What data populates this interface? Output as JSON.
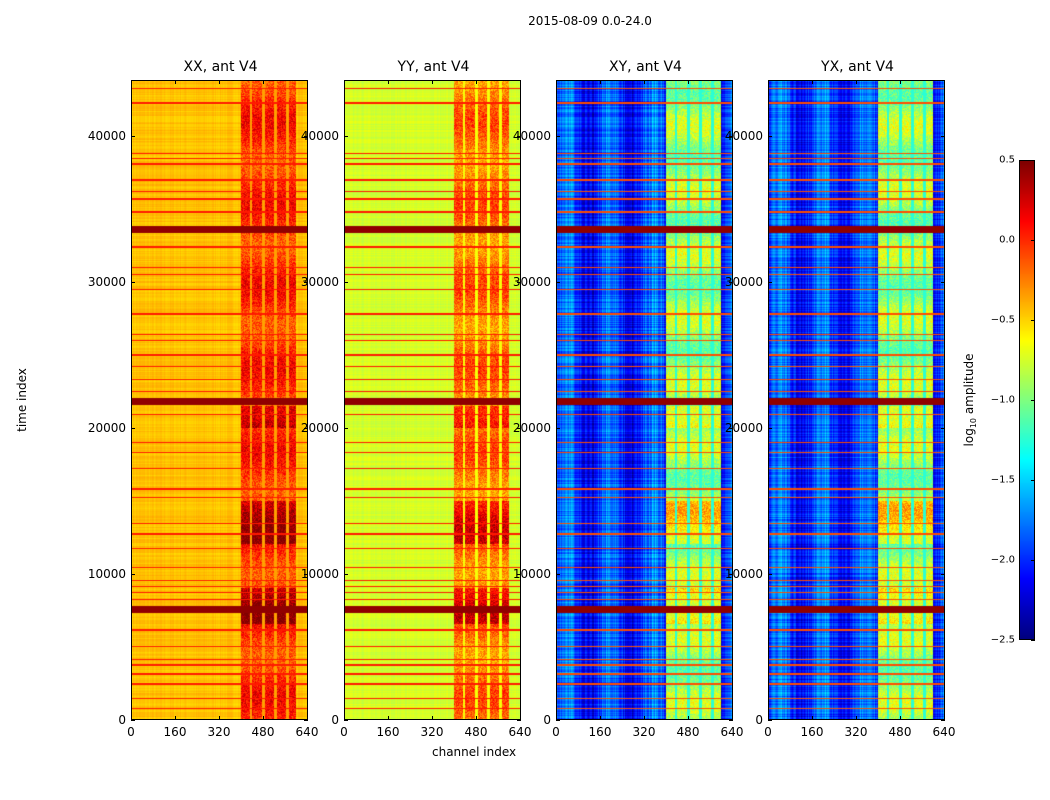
{
  "chart_data": {
    "type": "heatmap",
    "title": "2015-08-09 0.0-24.0",
    "xlabel": "channel index",
    "ylabel": "time index",
    "xlim": [
      0,
      640
    ],
    "ylim": [
      0,
      43800
    ],
    "xticks": [
      "0",
      "160",
      "320",
      "480",
      "640"
    ],
    "yticks": [
      "0",
      "10000",
      "20000",
      "30000",
      "40000"
    ],
    "colormap": "jet",
    "colorbar": {
      "label_prefix": "log",
      "label_sub": "10",
      "label_suffix": " amplitude",
      "range": [
        -2.5,
        0.5
      ],
      "ticks": [
        "0.5",
        "0.0",
        "−0.5",
        "−1.0",
        "−1.5",
        "−2.0",
        "−2.5"
      ]
    },
    "panels": [
      {
        "title": "XX, ant V4",
        "base_log_amp": -0.45,
        "band_log_amp": 0.0,
        "rfi_log_amp": 0.05
      },
      {
        "title": "YY, ant V4",
        "base_log_amp": -0.75,
        "band_log_amp": -0.2,
        "rfi_log_amp": 0.05
      },
      {
        "title": "XY, ant V4",
        "base_log_amp": -1.95,
        "band_log_amp": -0.9,
        "rfi_log_amp": -0.1
      },
      {
        "title": "YX, ant V4",
        "base_log_amp": -1.95,
        "band_log_amp": -0.9,
        "rfi_log_amp": -0.1
      }
    ],
    "band_channel_stripes": [
      [
        400,
        430
      ],
      [
        440,
        475
      ],
      [
        485,
        520
      ],
      [
        530,
        565
      ],
      [
        575,
        600
      ]
    ],
    "high_time_blocks": [
      [
        12000,
        15000
      ],
      [
        20000,
        21500
      ],
      [
        6500,
        9000
      ]
    ],
    "strong_rfi_rows": [
      33600,
      21800,
      7500
    ],
    "rfi_rows": [
      700,
      1400,
      2400,
      3100,
      3700,
      4100,
      5000,
      6100,
      8200,
      8700,
      9100,
      9500,
      10400,
      11700,
      12700,
      13400,
      15200,
      15800,
      17200,
      18300,
      19000,
      20900,
      22500,
      23300,
      24200,
      25000,
      26000,
      26400,
      27800,
      29500,
      30500,
      31000,
      32400,
      34800,
      35700,
      36200,
      37000,
      38100,
      38500,
      38800,
      42300,
      43300
    ]
  }
}
